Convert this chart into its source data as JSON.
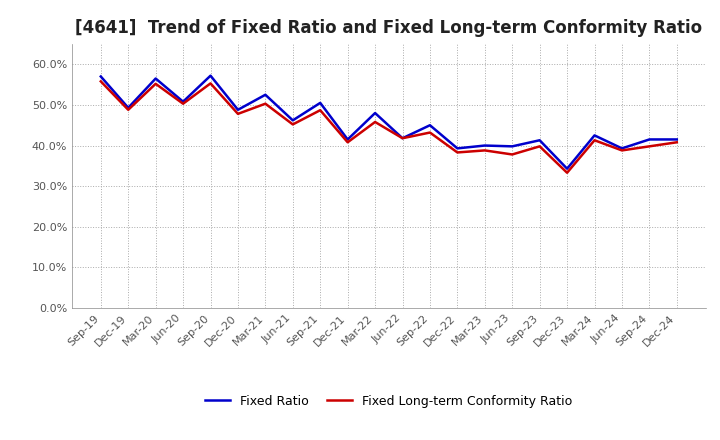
{
  "title": "[4641]  Trend of Fixed Ratio and Fixed Long-term Conformity Ratio",
  "labels": [
    "Sep-19",
    "Dec-19",
    "Mar-20",
    "Jun-20",
    "Sep-20",
    "Dec-20",
    "Mar-21",
    "Jun-21",
    "Sep-21",
    "Dec-21",
    "Mar-22",
    "Jun-22",
    "Sep-22",
    "Dec-22",
    "Mar-23",
    "Jun-23",
    "Sep-23",
    "Dec-23",
    "Mar-24",
    "Jun-24",
    "Sep-24",
    "Dec-24"
  ],
  "fixed_ratio": [
    0.57,
    0.493,
    0.565,
    0.508,
    0.572,
    0.488,
    0.525,
    0.462,
    0.505,
    0.415,
    0.48,
    0.418,
    0.45,
    0.393,
    0.4,
    0.398,
    0.413,
    0.343,
    0.425,
    0.393,
    0.415,
    0.415
  ],
  "fixed_lt_ratio": [
    0.558,
    0.488,
    0.552,
    0.503,
    0.553,
    0.478,
    0.503,
    0.452,
    0.487,
    0.408,
    0.458,
    0.418,
    0.432,
    0.383,
    0.388,
    0.378,
    0.398,
    0.333,
    0.413,
    0.388,
    0.398,
    0.408
  ],
  "fixed_ratio_color": "#0000cc",
  "fixed_lt_ratio_color": "#cc0000",
  "ylim": [
    0.0,
    0.65
  ],
  "yticks": [
    0.0,
    0.1,
    0.2,
    0.3,
    0.4,
    0.5,
    0.6
  ],
  "background_color": "#ffffff",
  "plot_bg_color": "#ffffff",
  "grid_color": "#aaaaaa",
  "grid_style": "dotted",
  "line_width": 1.8,
  "legend_fixed_ratio": "Fixed Ratio",
  "legend_fixed_lt_ratio": "Fixed Long-term Conformity Ratio",
  "title_fontsize": 12,
  "axis_fontsize": 8,
  "legend_fontsize": 9,
  "tick_color": "#555555"
}
